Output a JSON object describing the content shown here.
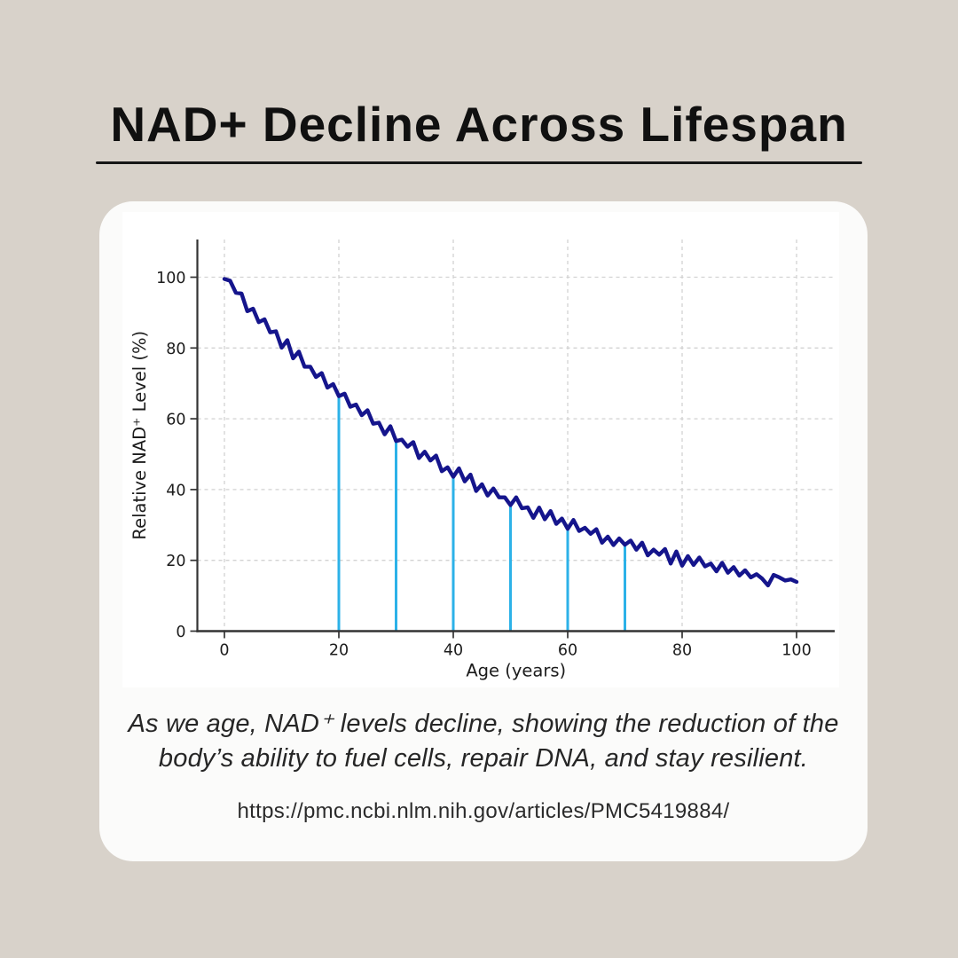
{
  "page": {
    "title": "NAD+ Decline Across Lifespan",
    "caption_line1": "As we age, NAD⁺ levels decline, showing the reduction of the",
    "caption_line2": "body’s ability to fuel cells, repair DNA, and stay resilient.",
    "source_url": "https://pmc.ncbi.nlm.nih.gov/articles/PMC5419884/"
  },
  "colors": {
    "background": "#d8d2ca",
    "card": "#fbfbfa",
    "figure": "#ffffff",
    "line": "#15158c",
    "marker_line": "#2cb2e8",
    "grid": "#d2d2d2",
    "spine": "#333333",
    "tick_text": "#1c1c1c"
  },
  "chart_data": {
    "type": "line",
    "title": "",
    "xlabel": "Age (years)",
    "ylabel": "Relative NAD⁺ Level (%)",
    "xlim": [
      -5,
      106
    ],
    "ylim": [
      0,
      110
    ],
    "xticks": [
      0,
      20,
      40,
      60,
      80,
      100
    ],
    "yticks": [
      0,
      20,
      40,
      60,
      80,
      100
    ],
    "grid": true,
    "grid_style": "dashed",
    "legend": "none",
    "vline_ages": [
      20,
      30,
      40,
      50,
      60,
      70
    ],
    "x": [
      0,
      1,
      2,
      3,
      4,
      5,
      6,
      7,
      8,
      9,
      10,
      11,
      12,
      13,
      14,
      15,
      16,
      17,
      18,
      19,
      20,
      21,
      22,
      23,
      24,
      25,
      26,
      27,
      28,
      29,
      30,
      31,
      32,
      33,
      34,
      35,
      36,
      37,
      38,
      39,
      40,
      41,
      42,
      43,
      44,
      45,
      46,
      47,
      48,
      49,
      50,
      51,
      52,
      53,
      54,
      55,
      56,
      57,
      58,
      59,
      60,
      61,
      62,
      63,
      64,
      65,
      66,
      67,
      68,
      69,
      70,
      71,
      72,
      73,
      74,
      75,
      76,
      77,
      78,
      79,
      80,
      81,
      82,
      83,
      84,
      85,
      86,
      87,
      88,
      89,
      90,
      91,
      92,
      93,
      94,
      95,
      96,
      97,
      98,
      99,
      100
    ],
    "series": [
      {
        "name": "Relative NAD+ level (%)",
        "values": [
          99.5,
          99.0,
          95.6,
          95.4,
          90.4,
          91.1,
          87.3,
          88.1,
          84.4,
          84.7,
          80.1,
          82.2,
          77.1,
          79.0,
          74.7,
          74.7,
          71.8,
          72.9,
          68.8,
          69.8,
          66.4,
          67.1,
          63.4,
          64.0,
          61.0,
          62.4,
          58.6,
          58.9,
          55.6,
          57.9,
          53.7,
          54.1,
          52.1,
          53.4,
          48.9,
          50.7,
          48.2,
          49.6,
          45.2,
          46.3,
          43.6,
          46.0,
          42.3,
          44.2,
          39.6,
          41.5,
          38.3,
          40.3,
          37.8,
          37.8,
          35.6,
          37.8,
          34.7,
          35.0,
          32.0,
          34.9,
          31.6,
          33.9,
          30.3,
          31.8,
          28.9,
          31.4,
          28.3,
          29.2,
          27.5,
          28.8,
          25.0,
          26.7,
          24.3,
          26.2,
          24.4,
          25.6,
          23.0,
          25.0,
          21.4,
          23.0,
          21.6,
          23.2,
          19.1,
          22.5,
          18.5,
          21.2,
          18.7,
          20.8,
          18.3,
          19.1,
          16.9,
          19.3,
          16.5,
          18.1,
          15.7,
          17.2,
          15.2,
          16.1,
          14.8,
          12.9,
          15.9,
          15.2,
          14.3,
          14.6,
          13.9
        ]
      }
    ]
  }
}
